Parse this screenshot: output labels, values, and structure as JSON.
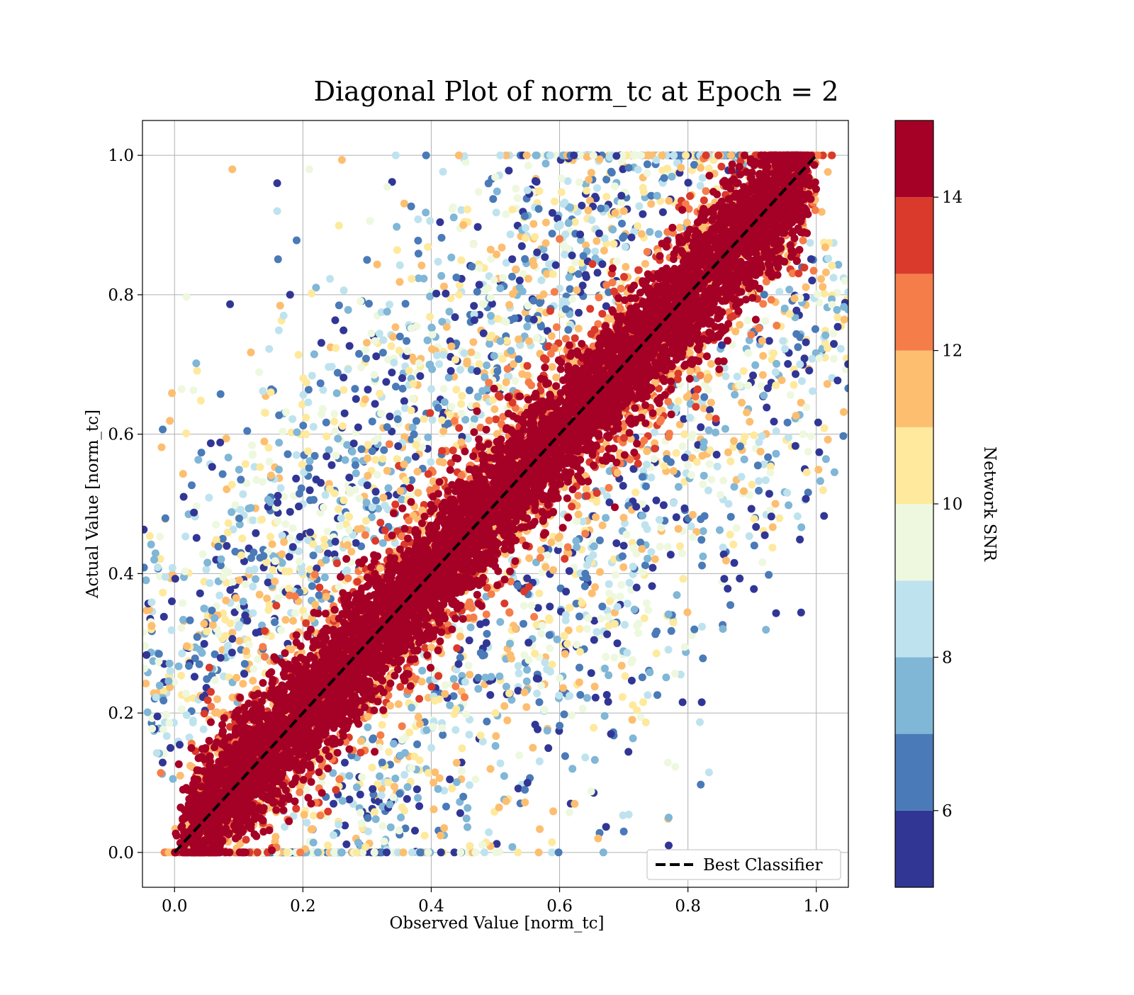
{
  "chart_data": {
    "type": "scatter",
    "title": "Diagonal Plot of norm_tc at Epoch = 2",
    "xlabel": "Observed Value [norm_tc]",
    "ylabel": "Actual Value [norm_tc]",
    "xlim": [
      -0.05,
      1.05
    ],
    "ylim": [
      -0.05,
      1.05
    ],
    "xticks": [
      "0.0",
      "0.2",
      "0.4",
      "0.6",
      "0.8",
      "1.0"
    ],
    "yticks": [
      "0.0",
      "0.2",
      "0.4",
      "0.6",
      "0.8",
      "1.0"
    ],
    "grid": true,
    "reference_line": {
      "label": "Best Classifier",
      "from": [
        0,
        0
      ],
      "to": [
        1,
        1
      ],
      "style": "dashed",
      "color": "#000000"
    },
    "legend": {
      "location": "lower-right",
      "entries": [
        "Best Classifier"
      ]
    },
    "colorbar": {
      "label": "Network SNR",
      "range": [
        5,
        15
      ],
      "ticks": [
        "6",
        "8",
        "10",
        "12",
        "14"
      ],
      "bins": [
        {
          "from": 5,
          "to": 6,
          "color": "#313695"
        },
        {
          "from": 6,
          "to": 7,
          "color": "#4a7ab7"
        },
        {
          "from": 7,
          "to": 8,
          "color": "#80b6d6"
        },
        {
          "from": 8,
          "to": 9,
          "color": "#bfe3ee"
        },
        {
          "from": 9,
          "to": 10,
          "color": "#eef8df"
        },
        {
          "from": 10,
          "to": 11,
          "color": "#fee99d"
        },
        {
          "from": 11,
          "to": 12,
          "color": "#fdbe70"
        },
        {
          "from": 12,
          "to": 13,
          "color": "#f57d4a"
        },
        {
          "from": 13,
          "to": 14,
          "color": "#d93a2b"
        },
        {
          "from": 14,
          "to": 15,
          "color": "#a50026"
        }
      ]
    },
    "series": [
      {
        "marker": "circle",
        "color_by": "Network SNR",
        "structure": "dense band around y = x; outer band y ≈ x ± 0.3 where lower SNR points spread",
        "points_sample": [
          [
            0.02,
            0.0,
            14.5
          ],
          [
            0.05,
            0.06,
            14.6
          ],
          [
            0.1,
            0.12,
            14.2
          ],
          [
            0.15,
            0.19,
            14.8
          ],
          [
            0.2,
            0.22,
            14.1
          ],
          [
            0.25,
            0.26,
            14.5
          ],
          [
            0.3,
            0.32,
            14.7
          ],
          [
            0.35,
            0.37,
            14.2
          ],
          [
            0.4,
            0.41,
            14.9
          ],
          [
            0.45,
            0.46,
            14.3
          ],
          [
            0.5,
            0.52,
            14.6
          ],
          [
            0.55,
            0.57,
            14.4
          ],
          [
            0.6,
            0.61,
            14.8
          ],
          [
            0.65,
            0.67,
            14.2
          ],
          [
            0.7,
            0.72,
            14.5
          ],
          [
            0.75,
            0.77,
            14.7
          ],
          [
            0.8,
            0.82,
            14.3
          ],
          [
            0.85,
            0.86,
            14.9
          ],
          [
            0.9,
            0.92,
            14.4
          ],
          [
            0.95,
            0.97,
            14.6
          ],
          [
            0.09,
            0.98,
            11.3
          ],
          [
            0.16,
            0.96,
            5.3
          ],
          [
            0.18,
            0.8,
            5.5
          ],
          [
            0.82,
            0.61,
            5.4
          ],
          [
            0.81,
            0.32,
            6.2
          ],
          [
            0.77,
            0.05,
            7.4
          ],
          [
            0.77,
            0.01,
            5.6
          ],
          [
            0.66,
            0.02,
            11.6
          ],
          [
            0.7,
            0.03,
            6.1
          ],
          [
            0.72,
            0.38,
            5.8
          ],
          [
            0.15,
            0.66,
            10.5
          ],
          [
            0.16,
            0.92,
            8.5
          ],
          [
            0.17,
            0.77,
            8.3
          ],
          [
            0.19,
            0.57,
            8.1
          ],
          [
            0.21,
            0.98,
            9.4
          ],
          [
            0.3,
            0.85,
            6.5
          ],
          [
            0.35,
            0.72,
            10.3
          ],
          [
            0.45,
            0.9,
            11.4
          ],
          [
            0.55,
            0.95,
            8.6
          ],
          [
            0.6,
            0.88,
            12.4
          ],
          [
            0.4,
            0.15,
            8.7
          ],
          [
            0.45,
            0.08,
            6.6
          ],
          [
            0.5,
            0.2,
            10.4
          ],
          [
            0.55,
            0.1,
            5.5
          ],
          [
            0.6,
            0.25,
            9.2
          ],
          [
            0.62,
            0.12,
            7.5
          ],
          [
            0.68,
            0.17,
            5.7
          ],
          [
            0.69,
            0.3,
            5.4
          ],
          [
            0.64,
            0.4,
            6.8
          ],
          [
            0.7,
            0.44,
            5.3
          ]
        ]
      }
    ]
  }
}
